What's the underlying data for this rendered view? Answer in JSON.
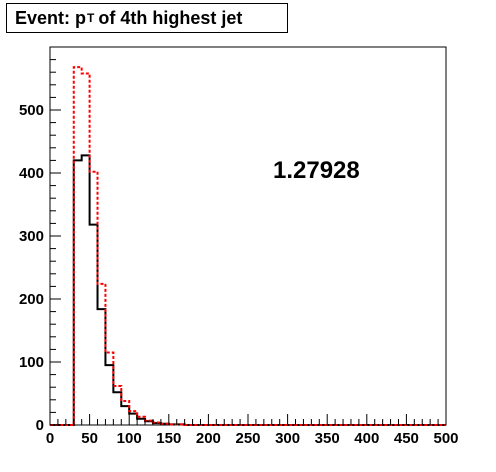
{
  "title": {
    "prefix": "Event: p",
    "sub": "T",
    "suffix": "of 4th highest jet"
  },
  "chart_data": {
    "type": "histogram",
    "title": "Event: p_T of 4th highest jet",
    "xlim": [
      0,
      500
    ],
    "ylim": [
      0,
      600
    ],
    "xticks": [
      0,
      50,
      100,
      150,
      200,
      250,
      300,
      350,
      400,
      450,
      500
    ],
    "yticks": [
      0,
      100,
      200,
      300,
      400,
      500
    ],
    "bin_edges": [
      0,
      10,
      20,
      30,
      40,
      50,
      60,
      70,
      80,
      90,
      100,
      110,
      120,
      130,
      140,
      150,
      160,
      170,
      180,
      190,
      200,
      210,
      220,
      230,
      240,
      250,
      260,
      270,
      280,
      290,
      300,
      310,
      320,
      330,
      340,
      350,
      360,
      370,
      380,
      390,
      400,
      410,
      420,
      430,
      440,
      450,
      460,
      470,
      480,
      490,
      500
    ],
    "series": [
      {
        "color": "#000000",
        "style": "solid",
        "values": [
          0,
          0,
          0,
          420,
          428,
          318,
          184,
          95,
          52,
          30,
          18,
          10,
          6,
          3,
          2,
          1,
          1,
          0,
          0,
          0,
          0,
          0,
          0,
          0,
          0,
          0,
          0,
          0,
          0,
          0,
          0,
          0,
          0,
          0,
          0,
          0,
          0,
          0,
          0,
          0,
          0,
          0,
          0,
          0,
          0,
          0,
          0,
          0,
          0,
          0
        ]
      },
      {
        "color": "#ff0000",
        "style": "dotted",
        "values": [
          0,
          0,
          0,
          568,
          558,
          402,
          224,
          115,
          62,
          38,
          22,
          13,
          7,
          4,
          2,
          1,
          1,
          0,
          0,
          0,
          0,
          0,
          0,
          0,
          0,
          0,
          0,
          0,
          0,
          0,
          0,
          0,
          0,
          0,
          0,
          0,
          0,
          0,
          0,
          0,
          0,
          0,
          0,
          0,
          0,
          0,
          0,
          0,
          0,
          0
        ]
      }
    ],
    "annotation": "1.27928"
  }
}
